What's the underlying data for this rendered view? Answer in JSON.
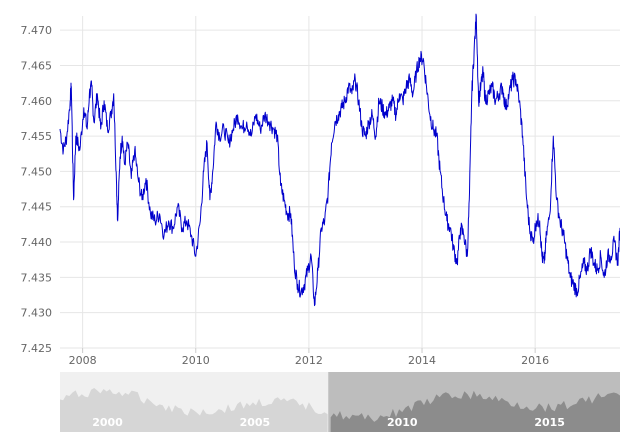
{
  "chart_data": {
    "type": "line",
    "title": "",
    "xlabel": "",
    "ylabel": "",
    "grid": true,
    "legend": "none",
    "line_color": "#0000cc",
    "xlim": [
      2007.6,
      2017.5
    ],
    "ylim": [
      7.425,
      7.472
    ],
    "x_ticks": [
      "2008",
      "2010",
      "2012",
      "2014",
      "2016"
    ],
    "y_ticks": [
      "7.470",
      "7.465",
      "7.460",
      "7.455",
      "7.450",
      "7.445",
      "7.440",
      "7.435",
      "7.430",
      "7.425"
    ],
    "series": [
      {
        "x": [
          2007.6,
          2007.66,
          2007.72,
          2007.78,
          2007.8,
          2007.84,
          2007.88,
          2007.95,
          2008.02,
          2008.08,
          2008.12,
          2008.16,
          2008.2,
          2008.26,
          2008.32,
          2008.38,
          2008.44,
          2008.5,
          2008.55,
          2008.6,
          2008.62,
          2008.66,
          2008.7,
          2008.74,
          2008.8,
          2008.86,
          2008.92,
          2008.98,
          2009.05,
          2009.12,
          2009.2,
          2009.28,
          2009.36,
          2009.44,
          2009.52,
          2009.6,
          2009.68,
          2009.76,
          2009.84,
          2009.92,
          2010.0,
          2010.08,
          2010.14,
          2010.2,
          2010.25,
          2010.3,
          2010.36,
          2010.42,
          2010.5,
          2010.58,
          2010.66,
          2010.74,
          2010.82,
          2010.9,
          2010.98,
          2011.06,
          2011.14,
          2011.22,
          2011.3,
          2011.38,
          2011.44,
          2011.5,
          2011.56,
          2011.62,
          2011.68,
          2011.74,
          2011.8,
          2011.86,
          2011.92,
          2011.98,
          2012.04,
          2012.1,
          2012.16,
          2012.22,
          2012.28,
          2012.34,
          2012.4,
          2012.46,
          2012.52,
          2012.58,
          2012.64,
          2012.7,
          2012.76,
          2012.82,
          2012.88,
          2012.94,
          2013.0,
          2013.06,
          2013.12,
          2013.18,
          2013.24,
          2013.3,
          2013.36,
          2013.42,
          2013.48,
          2013.54,
          2013.6,
          2013.66,
          2013.72,
          2013.78,
          2013.84,
          2013.9,
          2013.96,
          2014.02,
          2014.08,
          2014.14,
          2014.2,
          2014.26,
          2014.32,
          2014.38,
          2014.44,
          2014.5,
          2014.56,
          2014.62,
          2014.68,
          2014.74,
          2014.8,
          2014.84,
          2014.88,
          2014.92,
          2014.96,
          2015.0,
          2015.04,
          2015.08,
          2015.12,
          2015.18,
          2015.24,
          2015.3,
          2015.36,
          2015.42,
          2015.48,
          2015.54,
          2015.6,
          2015.66,
          2015.72,
          2015.78,
          2015.84,
          2015.9,
          2015.96,
          2016.02,
          2016.08,
          2016.12,
          2016.16,
          2016.2,
          2016.26,
          2016.32,
          2016.38,
          2016.44,
          2016.5,
          2016.56,
          2016.62,
          2016.68,
          2016.74,
          2016.8,
          2016.86,
          2016.92,
          2016.98,
          2017.04,
          2017.1,
          2017.16,
          2017.22,
          2017.28,
          2017.34,
          2017.4,
          2017.46,
          2017.5
        ],
        "values": [
          7.456,
          7.453,
          7.455,
          7.46,
          7.462,
          7.446,
          7.455,
          7.453,
          7.459,
          7.456,
          7.461,
          7.462,
          7.457,
          7.461,
          7.456,
          7.46,
          7.456,
          7.458,
          7.461,
          7.448,
          7.443,
          7.452,
          7.455,
          7.451,
          7.454,
          7.449,
          7.453,
          7.449,
          7.446,
          7.449,
          7.444,
          7.443,
          7.444,
          7.441,
          7.443,
          7.442,
          7.445,
          7.442,
          7.443,
          7.441,
          7.438,
          7.443,
          7.45,
          7.454,
          7.446,
          7.45,
          7.457,
          7.455,
          7.456,
          7.454,
          7.456,
          7.458,
          7.456,
          7.457,
          7.455,
          7.458,
          7.456,
          7.458,
          7.457,
          7.456,
          7.455,
          7.448,
          7.446,
          7.444,
          7.444,
          7.437,
          7.434,
          7.433,
          7.434,
          7.436,
          7.438,
          7.431,
          7.436,
          7.442,
          7.443,
          7.447,
          7.454,
          7.457,
          7.458,
          7.459,
          7.46,
          7.462,
          7.461,
          7.463,
          7.46,
          7.456,
          7.455,
          7.457,
          7.458,
          7.455,
          7.46,
          7.459,
          7.458,
          7.459,
          7.46,
          7.458,
          7.461,
          7.46,
          7.462,
          7.463,
          7.461,
          7.464,
          7.466,
          7.466,
          7.462,
          7.458,
          7.456,
          7.455,
          7.45,
          7.446,
          7.443,
          7.442,
          7.439,
          7.437,
          7.442,
          7.441,
          7.438,
          7.447,
          7.461,
          7.467,
          7.472,
          7.46,
          7.462,
          7.464,
          7.46,
          7.461,
          7.462,
          7.46,
          7.461,
          7.462,
          7.459,
          7.461,
          7.463,
          7.463,
          7.46,
          7.455,
          7.447,
          7.442,
          7.44,
          7.443,
          7.443,
          7.438,
          7.437,
          7.441,
          7.444,
          7.455,
          7.446,
          7.443,
          7.441,
          7.438,
          7.435,
          7.434,
          7.433,
          7.435,
          7.437,
          7.436,
          7.439,
          7.437,
          7.436,
          7.438,
          7.435,
          7.438,
          7.438,
          7.44,
          7.437,
          7.442
        ]
      }
    ],
    "navigator": {
      "labels": [
        "2000",
        "2005",
        "2010",
        "2015"
      ],
      "selected_range": [
        2007.6,
        2017.5
      ],
      "full_range": [
        1998.5,
        2017.5
      ]
    }
  },
  "colors": {
    "line": "#0000cc",
    "grid": "#e6e6e6",
    "axis_text": "#666666",
    "navigator_unselected": "#d6d6d6",
    "navigator_selected": "#8c8c8c",
    "navigator_bg_unselected": "#f0f0f0",
    "navigator_bg_selected": "#bdbdbd"
  }
}
